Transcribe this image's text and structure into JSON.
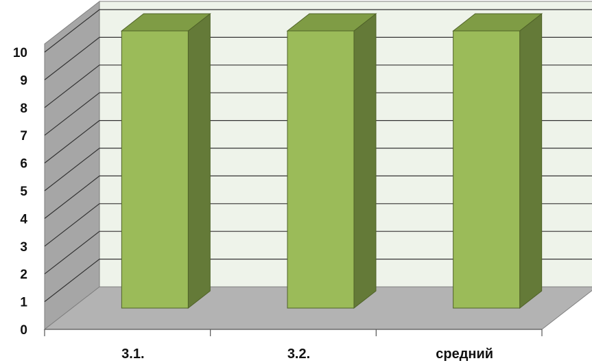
{
  "chart_data": {
    "type": "bar",
    "style": "3d-column",
    "categories": [
      "3.1.",
      "3.2.",
      "средний"
    ],
    "series": [
      {
        "values": [
          10,
          10,
          10
        ]
      }
    ],
    "title": "",
    "xlabel": "",
    "ylabel": "",
    "ylim": [
      0,
      10
    ],
    "yticks": [
      0,
      1,
      2,
      3,
      4,
      5,
      6,
      7,
      8,
      9,
      10
    ],
    "ytick_labels": [
      "0",
      "1",
      "2",
      "3",
      "4",
      "5",
      "6",
      "7",
      "8",
      "9",
      "10"
    ],
    "grid": true,
    "legend": "none",
    "colors": {
      "bar_front": "#9BBB59",
      "bar_side": "#647A38",
      "bar_top": "#7F9C45",
      "bar_edge": "#4F6228",
      "back_wall": "#EEF3EA",
      "side_wall": "#A6A6A6",
      "floor": "#B3B3B3",
      "gridline": "#333333"
    }
  }
}
